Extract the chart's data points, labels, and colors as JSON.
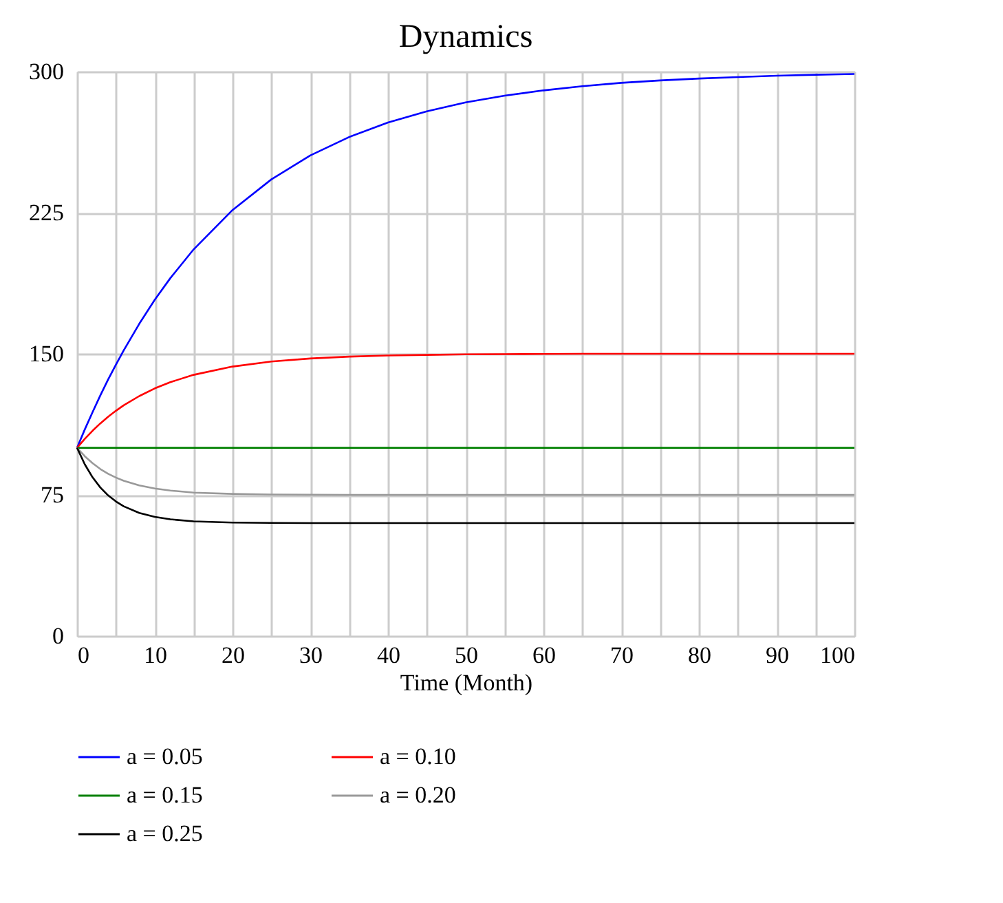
{
  "chart_data": {
    "type": "line",
    "title": "Dynamics",
    "xlabel": "Time (Month)",
    "x": [
      0,
      1,
      2,
      3,
      4,
      5,
      6,
      8,
      10,
      12,
      15,
      20,
      25,
      30,
      35,
      40,
      45,
      50,
      55,
      60,
      65,
      70,
      75,
      80,
      85,
      90,
      95,
      100
    ],
    "xlim": [
      0,
      100
    ],
    "xticks": [
      0,
      {
        "value": 5,
        "label": null
      },
      10,
      {
        "value": 15,
        "label": null
      },
      20,
      {
        "value": 25,
        "label": null
      },
      30,
      {
        "value": 35,
        "label": null
      },
      40,
      {
        "value": 45,
        "label": null
      },
      50,
      {
        "value": 55,
        "label": null
      },
      60,
      {
        "value": 65,
        "label": null
      },
      70,
      {
        "value": 75,
        "label": null
      },
      80,
      {
        "value": 85,
        "label": null
      },
      90,
      {
        "value": 95,
        "label": null
      },
      100
    ],
    "ylim": [
      0,
      300
    ],
    "yticks": [
      0,
      75,
      150,
      225,
      300
    ],
    "grid": true,
    "legend": "bottom",
    "line_style": "solid",
    "marker": "none",
    "series": [
      {
        "name": "a = 0.05",
        "color": "#0000ff",
        "values": [
          100,
          109.8,
          119.0,
          127.9,
          136.3,
          144.2,
          151.8,
          165.9,
          178.7,
          190.2,
          205.5,
          226.4,
          242.7,
          255.4,
          265.2,
          272.9,
          278.9,
          283.6,
          287.2,
          290.0,
          292.2,
          294.0,
          295.3,
          296.3,
          297.1,
          297.8,
          298.3,
          298.7
        ]
      },
      {
        "name": "a = 0.10",
        "color": "#ff0000",
        "values": [
          100,
          104.8,
          109.1,
          113.0,
          116.5,
          119.7,
          122.6,
          127.5,
          131.6,
          134.9,
          138.8,
          143.2,
          145.9,
          147.5,
          148.5,
          149.1,
          149.4,
          149.7,
          149.8,
          149.9,
          150,
          150,
          150,
          150,
          150,
          150,
          150,
          150
        ]
      },
      {
        "name": "a = 0.15",
        "color": "#008000",
        "values": [
          100,
          100,
          100,
          100,
          100,
          100,
          100,
          100,
          100,
          100,
          100,
          100,
          100,
          100,
          100,
          100,
          100,
          100,
          100,
          100,
          100,
          100,
          100,
          100,
          100,
          100,
          100,
          100
        ]
      },
      {
        "name": "a = 0.20",
        "color": "#999999",
        "values": [
          100,
          95.5,
          91.8,
          88.7,
          86.2,
          84.2,
          82.5,
          80.0,
          78.4,
          77.3,
          76.2,
          75.5,
          75.2,
          75.1,
          75,
          75,
          75,
          75,
          75,
          75,
          75,
          75,
          75,
          75,
          75,
          75,
          75,
          75
        ]
      },
      {
        "name": "a = 0.25",
        "color": "#000000",
        "values": [
          100,
          91.2,
          84.3,
          78.9,
          74.7,
          71.5,
          68.9,
          65.4,
          63.3,
          62.0,
          60.9,
          60.3,
          60.1,
          60.0,
          60,
          60,
          60,
          60,
          60,
          60,
          60,
          60,
          60,
          60,
          60,
          60,
          60,
          60
        ]
      }
    ]
  }
}
